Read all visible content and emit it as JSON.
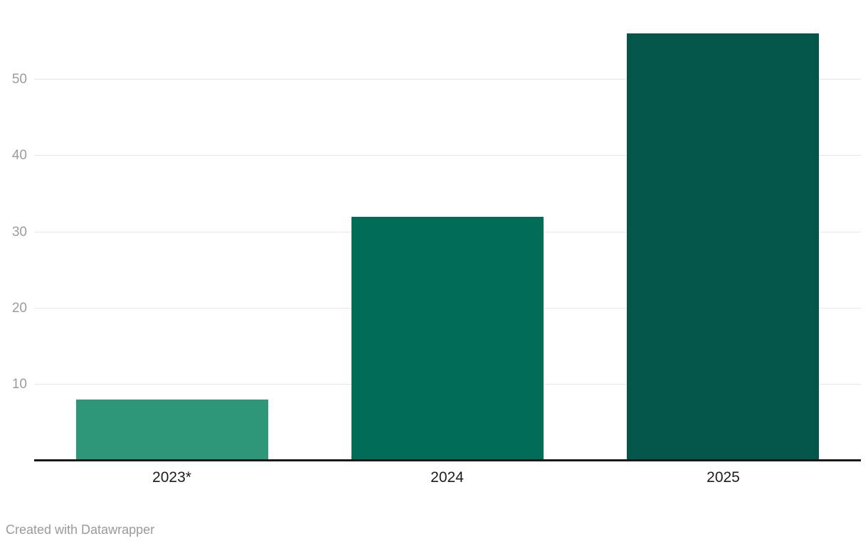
{
  "chart_data": {
    "type": "bar",
    "title": "",
    "xlabel": "",
    "ylabel": "",
    "categories": [
      "2023*",
      "2024",
      "2025"
    ],
    "values": [
      8,
      32,
      56
    ],
    "bar_colors": [
      "#2e9679",
      "#016d58",
      "#04564a"
    ],
    "yticks": [
      10,
      20,
      30,
      40,
      50
    ],
    "ylim": [
      0,
      56
    ],
    "grid": true,
    "legend": false,
    "axis_line_color": "#191919",
    "gridline_color": "#e7e7e7",
    "y_tick_label_color": "#9c9c9c",
    "x_label_color": "#1d1d1d"
  },
  "footer": {
    "attribution": "Created with Datawrapper"
  }
}
